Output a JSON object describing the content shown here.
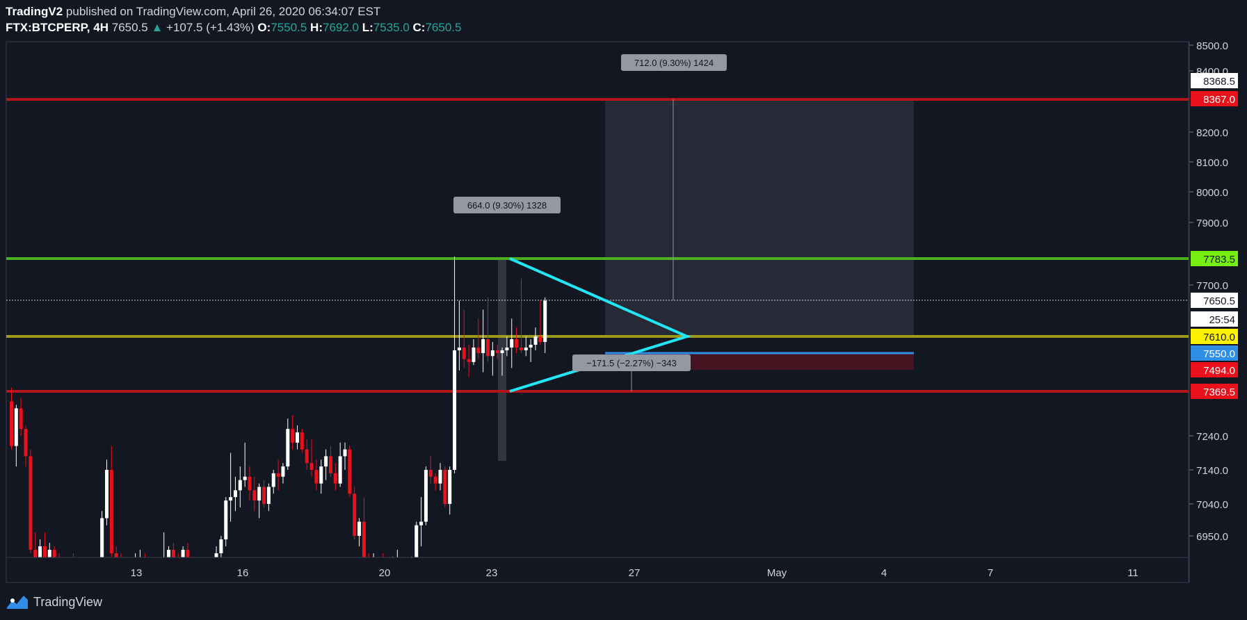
{
  "header": {
    "author": "TradingV2",
    "published_text": "published on TradingView.com, April 26, 2020 06:34:07 EST",
    "symbol": "FTX:BTCPERP, 4H",
    "last": "7650.5",
    "change": "+107.5 (+1.43%)",
    "open_label": "O:",
    "open": "7550.5",
    "high_label": "H:",
    "high": "7692.0",
    "low_label": "L:",
    "low": "7535.0",
    "close_label": "C:",
    "close": "7650.5"
  },
  "footer": {
    "brand": "TradingView"
  },
  "colors": {
    "background": "#131722",
    "up": "#ffffff",
    "down": "#e8111c",
    "resistance": "#b2161b",
    "support_green": "#4caf1f",
    "yellow_line": "#9c9a1c",
    "blue_line": "#2f8fe6",
    "triangle": "#22e6f5",
    "axis_text": "#d1d4dc"
  },
  "chart_data": {
    "type": "candlestick",
    "timeframe": "4H",
    "x_tick_labels": [
      "13",
      "16",
      "20",
      "23",
      "27",
      "May",
      "4",
      "7",
      "11"
    ],
    "y_tick_labels": [
      "8500.0",
      "8400.0",
      "8200.0",
      "8100.0",
      "8000.0",
      "7900.0",
      "7700.0",
      "7240.0",
      "7140.0",
      "7040.0",
      "6950.0"
    ],
    "price_labels": [
      {
        "text": "8368.5",
        "bg": "#ffffff",
        "fg": "#131722"
      },
      {
        "text": "8367.0",
        "bg": "#e8111c",
        "fg": "#ffffff"
      },
      {
        "text": "7783.5",
        "bg": "#76f013",
        "fg": "#131722"
      },
      {
        "text": "7650.5",
        "bg": "#ffffff",
        "fg": "#131722"
      },
      {
        "text": "25:54",
        "bg": "#ffffff",
        "fg": "#131722"
      },
      {
        "text": "7610.0",
        "bg": "#fff200",
        "fg": "#131722"
      },
      {
        "text": "7550.0",
        "bg": "#2f8fe6",
        "fg": "#ffffff"
      },
      {
        "text": "7494.0",
        "bg": "#e8111c",
        "fg": "#ffffff"
      },
      {
        "text": "7369.5",
        "bg": "#e8111c",
        "fg": "#ffffff"
      }
    ],
    "horizontal_levels": [
      {
        "name": "resistance-8367",
        "price": 8367.0,
        "color": "#b2161b"
      },
      {
        "name": "green-7783",
        "price": 7783.5,
        "color": "#4caf1f"
      },
      {
        "name": "yellow-7610",
        "price": 7610.0,
        "color": "#9c9a1c"
      },
      {
        "name": "support-7369",
        "price": 7369.5,
        "color": "#b2161b"
      }
    ],
    "annotations": [
      {
        "name": "measure-top",
        "text": "712.0 (9.30%) 1424"
      },
      {
        "name": "measure-mid",
        "text": "664.0 (9.30%) 1328"
      },
      {
        "name": "measure-bottom",
        "text": "−171.5 (−2.27%) −343"
      }
    ],
    "candles": [
      [
        7340,
        7390,
        7200,
        7210
      ],
      [
        7210,
        7330,
        7150,
        7320
      ],
      [
        7320,
        7350,
        7240,
        7260
      ],
      [
        7260,
        7270,
        7150,
        7180
      ],
      [
        7180,
        7200,
        6900,
        6910
      ],
      [
        6910,
        6960,
        6870,
        6880
      ],
      [
        6880,
        6940,
        6870,
        6920
      ],
      [
        6920,
        6960,
        6860,
        6870
      ],
      [
        6870,
        6930,
        6850,
        6910
      ],
      [
        6910,
        6920,
        6860,
        6880
      ],
      [
        6880,
        6900,
        6830,
        6840
      ],
      [
        6840,
        6860,
        6800,
        6810
      ],
      [
        6810,
        6880,
        6800,
        6860
      ],
      [
        6860,
        6900,
        6840,
        6850
      ],
      [
        6850,
        6870,
        6790,
        6800
      ],
      [
        6800,
        6830,
        6780,
        6790
      ],
      [
        6790,
        6810,
        6760,
        6770
      ],
      [
        6770,
        6800,
        6750,
        6780
      ],
      [
        6780,
        6820,
        6760,
        6800
      ],
      [
        6800,
        7020,
        6790,
        7000
      ],
      [
        7000,
        7170,
        6980,
        7140
      ],
      [
        7140,
        7210,
        6890,
        6900
      ],
      [
        6900,
        6920,
        6860,
        6880
      ],
      [
        6880,
        6900,
        6860,
        6870
      ],
      [
        6870,
        6890,
        6850,
        6860
      ],
      [
        6860,
        6880,
        6840,
        6850
      ],
      [
        6850,
        6900,
        6840,
        6870
      ],
      [
        6870,
        6910,
        6850,
        6880
      ],
      [
        6880,
        6900,
        6840,
        6850
      ],
      [
        6850,
        6860,
        6800,
        6810
      ],
      [
        6810,
        6860,
        6790,
        6850
      ],
      [
        6850,
        6880,
        6830,
        6860
      ],
      [
        6860,
        6960,
        6850,
        6880
      ],
      [
        6880,
        6920,
        6860,
        6910
      ],
      [
        6910,
        6930,
        6870,
        6880
      ],
      [
        6880,
        6900,
        6860,
        6870
      ],
      [
        6870,
        6920,
        6860,
        6910
      ],
      [
        6910,
        6930,
        6870,
        6880
      ],
      [
        6880,
        6890,
        6830,
        6840
      ],
      [
        6840,
        6860,
        6810,
        6820
      ],
      [
        6820,
        6870,
        6800,
        6860
      ],
      [
        6860,
        6880,
        6830,
        6850
      ],
      [
        6850,
        6880,
        6830,
        6860
      ],
      [
        6860,
        6920,
        6850,
        6900
      ],
      [
        6900,
        6950,
        6880,
        6940
      ],
      [
        6940,
        7060,
        6920,
        7050
      ],
      [
        7050,
        7190,
        6990,
        7060
      ],
      [
        7060,
        7120,
        7020,
        7080
      ],
      [
        7080,
        7150,
        7030,
        7110
      ],
      [
        7110,
        7220,
        7090,
        7120
      ],
      [
        7120,
        7150,
        7050,
        7080
      ],
      [
        7080,
        7120,
        7020,
        7050
      ],
      [
        7050,
        7100,
        7000,
        7090
      ],
      [
        7090,
        7110,
        7030,
        7040
      ],
      [
        7040,
        7100,
        7020,
        7090
      ],
      [
        7090,
        7140,
        7070,
        7130
      ],
      [
        7130,
        7170,
        7080,
        7120
      ],
      [
        7120,
        7160,
        7100,
        7150
      ],
      [
        7150,
        7290,
        7140,
        7260
      ],
      [
        7260,
        7300,
        7200,
        7220
      ],
      [
        7220,
        7270,
        7200,
        7250
      ],
      [
        7250,
        7260,
        7190,
        7200
      ],
      [
        7200,
        7230,
        7140,
        7160
      ],
      [
        7160,
        7230,
        7120,
        7140
      ],
      [
        7140,
        7170,
        7080,
        7100
      ],
      [
        7100,
        7170,
        7070,
        7150
      ],
      [
        7150,
        7200,
        7110,
        7180
      ],
      [
        7180,
        7210,
        7120,
        7130
      ],
      [
        7130,
        7160,
        7080,
        7100
      ],
      [
        7100,
        7220,
        7090,
        7180
      ],
      [
        7180,
        7220,
        7140,
        7200
      ],
      [
        7200,
        7210,
        7060,
        7070
      ],
      [
        7070,
        7090,
        6940,
        6950
      ],
      [
        6950,
        7000,
        6920,
        6990
      ],
      [
        6990,
        7060,
        6870,
        6880
      ],
      [
        6880,
        6900,
        6830,
        6840
      ],
      [
        6840,
        6900,
        6820,
        6870
      ],
      [
        6870,
        6890,
        6840,
        6860
      ],
      [
        6860,
        6900,
        6840,
        6850
      ],
      [
        6850,
        6880,
        6820,
        6840
      ],
      [
        6840,
        6890,
        6820,
        6870
      ],
      [
        6870,
        6910,
        6850,
        6880
      ],
      [
        6880,
        6890,
        6830,
        6840
      ],
      [
        6840,
        6850,
        6800,
        6810
      ],
      [
        6810,
        6890,
        6800,
        6880
      ],
      [
        6880,
        6990,
        6860,
        6980
      ],
      [
        6980,
        7060,
        6920,
        6990
      ],
      [
        6990,
        7150,
        6980,
        7140
      ],
      [
        7140,
        7180,
        7100,
        7120
      ],
      [
        7120,
        7130,
        7080,
        7100
      ],
      [
        7100,
        7160,
        7080,
        7140
      ],
      [
        7140,
        7150,
        7030,
        7040
      ],
      [
        7040,
        7150,
        7010,
        7140
      ],
      [
        7140,
        7790,
        7130,
        7560
      ],
      [
        7560,
        7650,
        7490,
        7570
      ],
      [
        7570,
        7640,
        7500,
        7530
      ],
      [
        7530,
        7580,
        7450,
        7520
      ],
      [
        7520,
        7600,
        7510,
        7570
      ],
      [
        7570,
        7630,
        7530,
        7550
      ],
      [
        7550,
        7640,
        7480,
        7600
      ],
      [
        7600,
        7660,
        7520,
        7540
      ],
      [
        7540,
        7590,
        7460,
        7560
      ],
      [
        7560,
        7580,
        7530,
        7550
      ],
      [
        7550,
        7570,
        7460,
        7560
      ],
      [
        7560,
        7610,
        7540,
        7570
      ],
      [
        7570,
        7630,
        7500,
        7600
      ],
      [
        7600,
        7620,
        7550,
        7570
      ],
      [
        7570,
        7720,
        7550,
        7560
      ],
      [
        7560,
        7610,
        7540,
        7570
      ],
      [
        7570,
        7600,
        7520,
        7580
      ],
      [
        7580,
        7620,
        7560,
        7610
      ],
      [
        7610,
        7650,
        7580,
        7590
      ],
      [
        7590,
        7660,
        7550,
        7650
      ]
    ]
  }
}
